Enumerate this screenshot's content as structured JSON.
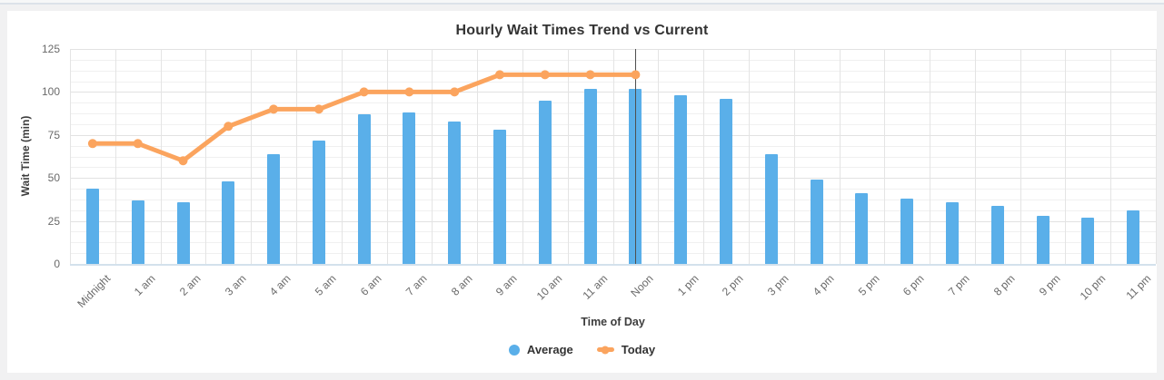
{
  "chart_data": {
    "type": "bar+line",
    "title": "Hourly Wait Times Trend vs Current",
    "xlabel": "Time of Day",
    "ylabel": "Wait Time (min)",
    "ylim": [
      0,
      125
    ],
    "yticks": [
      0,
      25,
      50,
      75,
      100,
      125
    ],
    "minor_grid_step": 6.25,
    "grid": true,
    "legend_position": "bottom",
    "categories": [
      "Midnight",
      "1 am",
      "2 am",
      "3 am",
      "4 am",
      "5 am",
      "6 am",
      "7 am",
      "8 am",
      "9 am",
      "10 am",
      "11 am",
      "Noon",
      "1 pm",
      "2 pm",
      "3 pm",
      "4 pm",
      "5 pm",
      "6 pm",
      "7 pm",
      "8 pm",
      "9 pm",
      "10 pm",
      "11 pm"
    ],
    "series": [
      {
        "name": "Average",
        "type": "bar",
        "color": "#5aafe9",
        "values": [
          44,
          37,
          36,
          48,
          64,
          72,
          87,
          88,
          83,
          78,
          95,
          102,
          102,
          98,
          96,
          64,
          49,
          41,
          38,
          36,
          34,
          28,
          27,
          31
        ]
      },
      {
        "name": "Today",
        "type": "line",
        "color": "#fba45e",
        "values": [
          70,
          70,
          60,
          80,
          90,
          90,
          100,
          100,
          100,
          110,
          110,
          110,
          110,
          null,
          null,
          null,
          null,
          null,
          null,
          null,
          null,
          null,
          null,
          null
        ]
      }
    ],
    "annotation": {
      "name": "current-time",
      "at_category": "Noon",
      "index": 12,
      "color": "#4f4f4f"
    }
  },
  "legend": {
    "items": [
      {
        "label": "Average",
        "marker": "circle-icon"
      },
      {
        "label": "Today",
        "marker": "line-dot-icon"
      }
    ]
  }
}
